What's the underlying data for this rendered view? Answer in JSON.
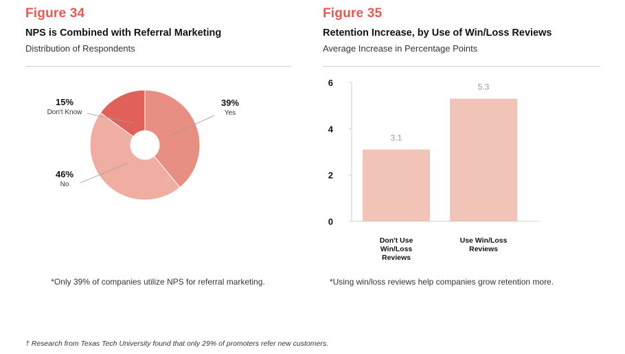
{
  "fig34": {
    "number": "Figure 34",
    "title": "NPS is Combined with Referral Marketing",
    "subtitle": "Distribution of Respondents",
    "note": "*Only 39% of companies utilize NPS for referral marketing."
  },
  "fig35": {
    "number": "Figure 35",
    "title": "Retention Increase, by Use of Win/Loss Reviews",
    "subtitle": "Average Increase in Percentage Points",
    "note": "*Using win/loss reviews help companies grow retention more."
  },
  "footer": "† Research from Texas Tech University found that only 29% of promoters refer new customers.",
  "chart_data": [
    {
      "type": "pie",
      "title": "NPS is Combined with Referral Marketing",
      "subtitle": "Distribution of Respondents",
      "categories": [
        "Yes",
        "No",
        "Don't Know"
      ],
      "values": [
        39,
        46,
        15
      ],
      "labels": [
        "39%",
        "46%",
        "15%"
      ],
      "colors": [
        "#e98e82",
        "#f0aea2",
        "#e1615a"
      ],
      "donut": true
    },
    {
      "type": "bar",
      "title": "Retention Increase, by Use of Win/Loss Reviews",
      "subtitle": "Average Increase in Percentage Points",
      "categories": [
        [
          "Don't Use",
          "Win/Loss",
          "Reviews"
        ],
        [
          "Use Win/Loss",
          "Reviews"
        ]
      ],
      "values": [
        3.1,
        5.3
      ],
      "value_labels": [
        "3.1",
        "5.3"
      ],
      "yticks": [
        0,
        2,
        4,
        6
      ],
      "ylim": [
        0,
        6
      ],
      "xlabel": "",
      "ylabel": "",
      "bar_color": "#f2c3b7",
      "grid": false
    }
  ]
}
